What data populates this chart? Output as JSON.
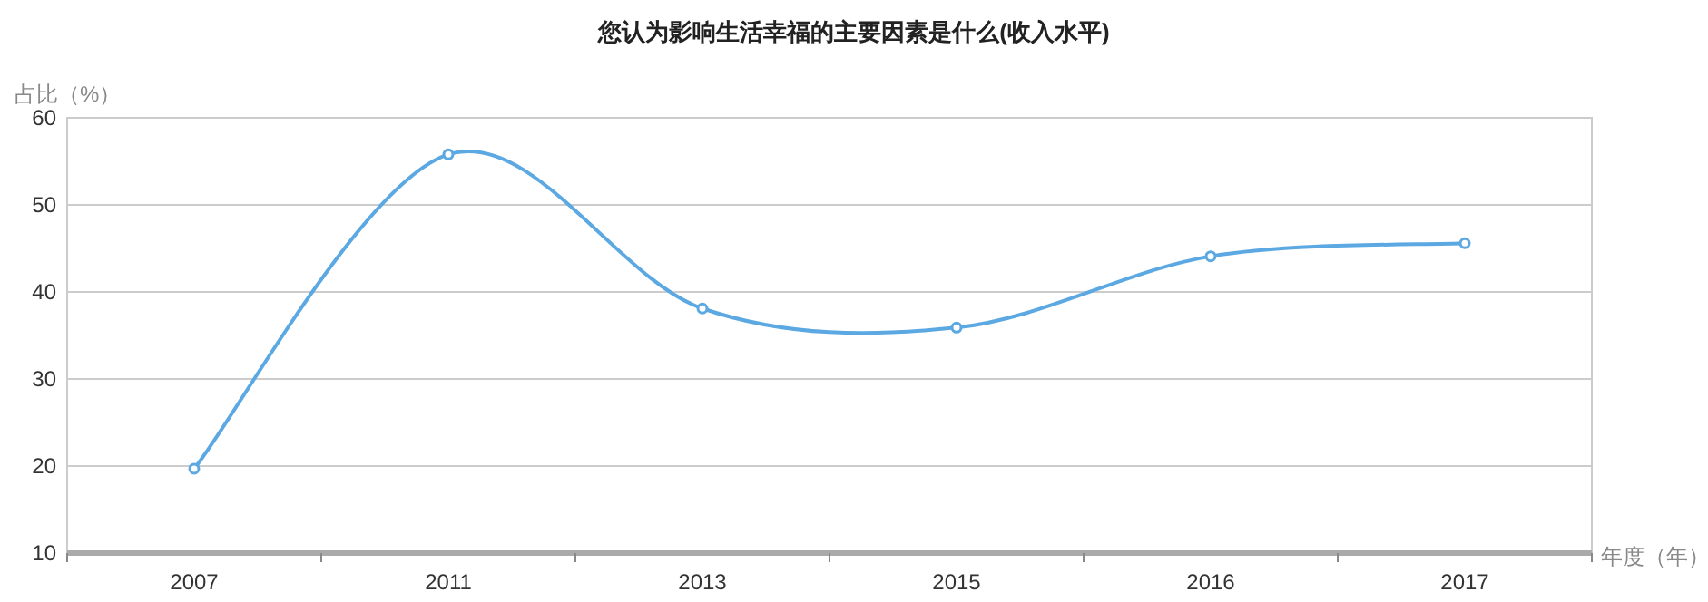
{
  "chart_data": {
    "type": "line",
    "title": "您认为影响生活幸福的主要因素是什么(收入水平)",
    "xlabel": "年度（年）",
    "ylabel": "占比（%）",
    "categories": [
      "2007",
      "2011",
      "2013",
      "2015",
      "2016",
      "2017"
    ],
    "series": [
      {
        "color": "#5ba8e2",
        "values": [
          19.7,
          55.8,
          38.1,
          35.9,
          44.1,
          45.6
        ]
      }
    ],
    "ylim": [
      10,
      60
    ],
    "yticks": [
      10,
      20,
      30,
      40,
      50,
      60
    ],
    "grid": "y",
    "marker": "circle"
  }
}
